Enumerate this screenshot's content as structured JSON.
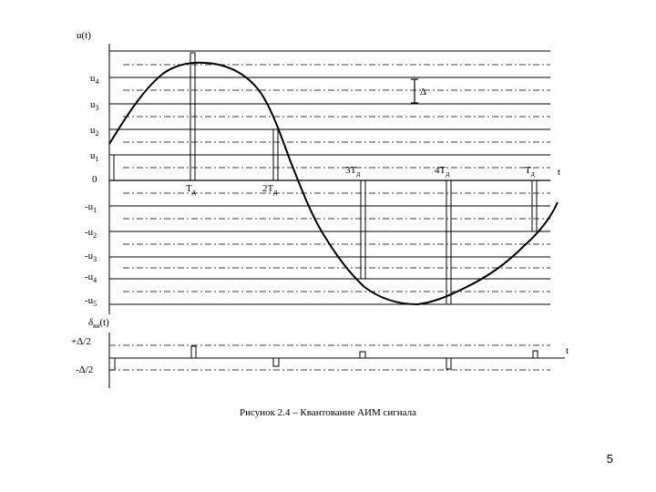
{
  "top_plot": {
    "y_axis_label": "u(t)",
    "t_label": "t",
    "level_labels": [
      {
        "main": "u",
        "sub": "4"
      },
      {
        "main": "u",
        "sub": "3"
      },
      {
        "main": "u",
        "sub": "2"
      },
      {
        "main": "u",
        "sub": "1"
      },
      {
        "main": "0",
        "sub": ""
      },
      {
        "main": "-u",
        "sub": "1"
      },
      {
        "main": "-u",
        "sub": "2"
      },
      {
        "main": "-u",
        "sub": "3"
      },
      {
        "main": "-u",
        "sub": "4"
      },
      {
        "main": "-u",
        "sub": "5"
      }
    ],
    "sample_labels": [
      {
        "main": "T",
        "sub": "д"
      },
      {
        "main": "2T",
        "sub": "д"
      },
      {
        "main": "3T",
        "sub": "д"
      },
      {
        "main": "4T",
        "sub": "д"
      },
      {
        "main": "T",
        "sub": "д"
      }
    ],
    "delta_label": "Δ"
  },
  "bottom_plot": {
    "y_axis_label_main": "δ",
    "y_axis_label_sub": "кв",
    "y_axis_label_arg": "(t)",
    "plus_label": "+Δ/2",
    "minus_label": "-Δ/2",
    "t_label": "t"
  },
  "caption": "Рисунок 2.4 – Квантование АИМ сигнала",
  "page_number": "5",
  "colors": {
    "ink": "#000000",
    "background": "#ffffff"
  }
}
